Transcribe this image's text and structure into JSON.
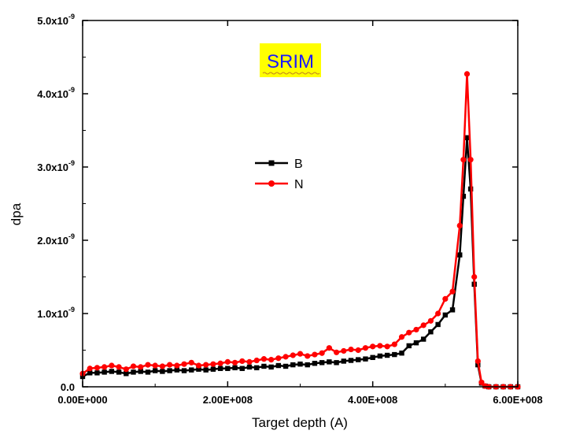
{
  "chart_data": {
    "type": "line",
    "title": "",
    "xlabel": "Target depth (A)",
    "ylabel": "dpa",
    "xlim": [
      0,
      600000000
    ],
    "ylim": [
      0,
      5e-09
    ],
    "grid": false,
    "legend_position": "center",
    "annotation": "SRIM",
    "annotation_color": "#ffff00",
    "x_ticks": [
      {
        "value": 0,
        "label": "0.00E+000"
      },
      {
        "value": 200000000,
        "label": "2.00E+008"
      },
      {
        "value": 400000000,
        "label": "4.00E+008"
      },
      {
        "value": 600000000,
        "label": "6.00E+008"
      }
    ],
    "y_ticks": [
      {
        "value": 0,
        "mantissa": "0.0",
        "exp": ""
      },
      {
        "value": 1e-09,
        "mantissa": "1.0x10",
        "exp": "-9"
      },
      {
        "value": 2e-09,
        "mantissa": "2.0x10",
        "exp": "-9"
      },
      {
        "value": 3e-09,
        "mantissa": "3.0x10",
        "exp": "-9"
      },
      {
        "value": 4e-09,
        "mantissa": "4.0x10",
        "exp": "-9"
      },
      {
        "value": 5e-09,
        "mantissa": "5.0x10",
        "exp": "-9"
      }
    ],
    "series": [
      {
        "name": "B",
        "color": "#000000",
        "marker": "square",
        "x": [
          0,
          10000000,
          20000000,
          30000000,
          40000000,
          50000000,
          60000000,
          70000000,
          80000000,
          90000000,
          100000000,
          110000000,
          120000000,
          130000000,
          140000000,
          150000000,
          160000000,
          170000000,
          180000000,
          190000000,
          200000000,
          210000000,
          220000000,
          230000000,
          240000000,
          250000000,
          260000000,
          270000000,
          280000000,
          290000000,
          300000000,
          310000000,
          320000000,
          330000000,
          340000000,
          350000000,
          360000000,
          370000000,
          380000000,
          390000000,
          400000000,
          410000000,
          420000000,
          430000000,
          440000000,
          450000000,
          460000000,
          470000000,
          480000000,
          490000000,
          500000000,
          510000000,
          520000000,
          525000000,
          530000000,
          535000000,
          540000000,
          545000000,
          550000000,
          555000000,
          560000000,
          570000000,
          580000000,
          590000000,
          600000000
        ],
        "y": [
          1.4e-10,
          1.9e-10,
          1.9e-10,
          2e-10,
          2.1e-10,
          2e-10,
          1.8e-10,
          2e-10,
          2.1e-10,
          2e-10,
          2.2e-10,
          2.1e-10,
          2.2e-10,
          2.3e-10,
          2.2e-10,
          2.3e-10,
          2.4e-10,
          2.3e-10,
          2.4e-10,
          2.5e-10,
          2.5e-10,
          2.6e-10,
          2.5e-10,
          2.7e-10,
          2.6e-10,
          2.8e-10,
          2.7e-10,
          2.9e-10,
          2.8e-10,
          3e-10,
          3.1e-10,
          3e-10,
          3.2e-10,
          3.3e-10,
          3.4e-10,
          3.3e-10,
          3.5e-10,
          3.6e-10,
          3.7e-10,
          3.8e-10,
          4e-10,
          4.2e-10,
          4.3e-10,
          4.4e-10,
          4.6e-10,
          5.6e-10,
          6e-10,
          6.5e-10,
          7.5e-10,
          8.5e-10,
          9.8e-10,
          1.05e-09,
          1.8e-09,
          2.6e-09,
          3.4e-09,
          2.7e-09,
          1.4e-09,
          3e-10,
          5e-11,
          1e-11,
          0,
          0,
          0,
          0,
          0
        ]
      },
      {
        "name": "N",
        "color": "#ff0000",
        "marker": "circle",
        "x": [
          0,
          10000000,
          20000000,
          30000000,
          40000000,
          50000000,
          60000000,
          70000000,
          80000000,
          90000000,
          100000000,
          110000000,
          120000000,
          130000000,
          140000000,
          150000000,
          160000000,
          170000000,
          180000000,
          190000000,
          200000000,
          210000000,
          220000000,
          230000000,
          240000000,
          250000000,
          260000000,
          270000000,
          280000000,
          290000000,
          300000000,
          310000000,
          320000000,
          330000000,
          340000000,
          350000000,
          360000000,
          370000000,
          380000000,
          390000000,
          400000000,
          410000000,
          420000000,
          430000000,
          440000000,
          450000000,
          460000000,
          470000000,
          480000000,
          490000000,
          500000000,
          510000000,
          520000000,
          525000000,
          530000000,
          535000000,
          540000000,
          545000000,
          550000000,
          555000000,
          560000000,
          570000000,
          580000000,
          590000000,
          600000000
        ],
        "y": [
          1.8e-10,
          2.5e-10,
          2.6e-10,
          2.7e-10,
          2.9e-10,
          2.7e-10,
          2.4e-10,
          2.8e-10,
          2.7e-10,
          3e-10,
          2.9e-10,
          2.8e-10,
          3e-10,
          2.9e-10,
          3.1e-10,
          3.3e-10,
          2.9e-10,
          3e-10,
          3.1e-10,
          3.2e-10,
          3.4e-10,
          3.3e-10,
          3.5e-10,
          3.4e-10,
          3.6e-10,
          3.8e-10,
          3.7e-10,
          3.9e-10,
          4.1e-10,
          4.3e-10,
          4.5e-10,
          4.2e-10,
          4.4e-10,
          4.6e-10,
          5.3e-10,
          4.7e-10,
          4.9e-10,
          5.1e-10,
          5e-10,
          5.3e-10,
          5.5e-10,
          5.6e-10,
          5.5e-10,
          5.8e-10,
          6.8e-10,
          7.4e-10,
          7.8e-10,
          8.4e-10,
          9e-10,
          1e-09,
          1.2e-09,
          1.3e-09,
          2.2e-09,
          3.1e-09,
          4.27e-09,
          3.1e-09,
          1.5e-09,
          3.5e-10,
          6e-11,
          1e-11,
          0,
          0,
          0,
          0,
          0
        ]
      }
    ]
  }
}
